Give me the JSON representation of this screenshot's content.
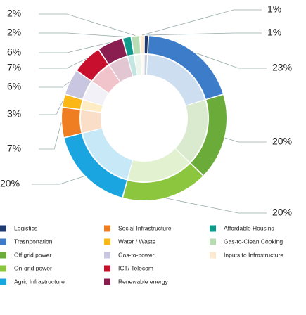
{
  "chart_data": {
    "type": "donut",
    "categories": [
      "Logistics",
      "Trasnportation",
      "Off grid power",
      "On-grid power",
      "Agric Infrastructure",
      "Social Infrastructure",
      "Water / Waste",
      "Gas-to-power",
      "ICT/ Telecom",
      "Renewable energy",
      "Affordable Housing",
      "Gas-to-Clean Cooking",
      "Inputs to Infrastructure"
    ],
    "values": [
      1,
      23,
      20,
      20,
      20,
      7,
      3,
      6,
      7,
      6,
      2,
      2,
      1
    ],
    "value_labels": [
      "1%",
      "23%",
      "20%",
      "20%",
      "20%",
      "7%",
      "3%",
      "6%",
      "7%",
      "6%",
      "2%",
      "2%",
      "1%"
    ],
    "colors": [
      "#1f3a6e",
      "#3d7cc9",
      "#6aab3a",
      "#8cc63f",
      "#1ba5e0",
      "#ef7d22",
      "#fbb715",
      "#c8c6e0",
      "#c8102e",
      "#8b1e50",
      "#0f9a8c",
      "#b9dcb4",
      "#fde9cf"
    ]
  }
}
